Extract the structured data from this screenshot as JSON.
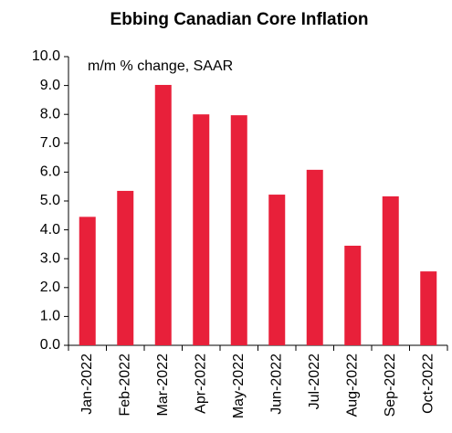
{
  "chart_data": {
    "type": "bar",
    "title": "Ebbing Canadian Core Inflation",
    "annotation": "m/m % change, SAAR",
    "categories": [
      "Jan-2022",
      "Feb-2022",
      "Mar-2022",
      "Apr-2022",
      "May-2022",
      "Jun-2022",
      "Jul-2022",
      "Aug-2022",
      "Sep-2022",
      "Oct-2022"
    ],
    "values": [
      4.45,
      5.35,
      9.02,
      8.0,
      7.97,
      5.22,
      6.08,
      3.45,
      5.16,
      2.56
    ],
    "color": "#e8203a",
    "ylim": [
      0,
      10
    ],
    "yticks": [
      {
        "value": 0,
        "label": "0.0"
      },
      {
        "value": 1,
        "label": "1.0"
      },
      {
        "value": 2,
        "label": "2.0"
      },
      {
        "value": 3,
        "label": "3.0"
      },
      {
        "value": 4,
        "label": "4.0"
      },
      {
        "value": 5,
        "label": "5.0"
      },
      {
        "value": 6,
        "label": "6.0"
      },
      {
        "value": 7,
        "label": "7.0"
      },
      {
        "value": 8,
        "label": "8.0"
      },
      {
        "value": 9,
        "label": "9.0"
      },
      {
        "value": 10,
        "label": "10.0"
      }
    ],
    "grid": false
  }
}
